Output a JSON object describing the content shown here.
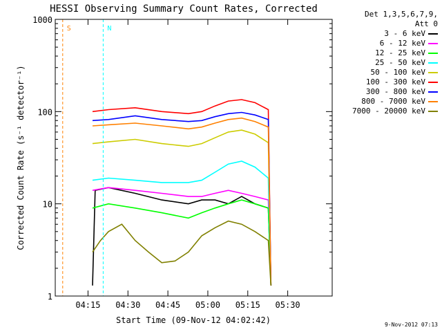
{
  "chart_data": {
    "type": "line",
    "title": "HESSI Observing Summary Count Rates, Corrected",
    "xlabel": "Start Time (09-Nov-12 04:02:42)",
    "ylabel": "Corrected Count Rate (s⁻¹ detector⁻¹)",
    "yscale": "log",
    "ylim": [
      1,
      1000
    ],
    "xlim_minutes_after_start": [
      0,
      104
    ],
    "x_tick_labels": [
      "04:15",
      "04:30",
      "04:45",
      "05:00",
      "05:15",
      "05:30"
    ],
    "x_tick_minutes_after_start": [
      12.3,
      27.3,
      42.3,
      57.3,
      72.3,
      87.3
    ],
    "y_tick_labels": [
      "1",
      "10",
      "100",
      "1000"
    ],
    "y_tick_values": [
      1,
      10,
      100,
      1000
    ],
    "legend_header": [
      "Det 1,3,5,6,7,9,",
      "Att 0"
    ],
    "legend_position": "right",
    "series": [
      {
        "name": "3 - 6 keV",
        "color": "#000000",
        "points": [
          [
            14,
            1.3
          ],
          [
            15,
            14
          ],
          [
            20,
            15
          ],
          [
            30,
            13
          ],
          [
            40,
            11
          ],
          [
            50,
            10
          ],
          [
            55,
            11
          ],
          [
            60,
            11
          ],
          [
            65,
            10
          ],
          [
            70,
            12
          ],
          [
            75,
            10
          ],
          [
            80,
            9
          ],
          [
            81,
            1.3
          ]
        ]
      },
      {
        "name": "6 - 12 keV",
        "color": "#ff00ff",
        "points": [
          [
            14,
            14
          ],
          [
            20,
            15
          ],
          [
            30,
            14
          ],
          [
            40,
            13
          ],
          [
            50,
            12
          ],
          [
            55,
            12
          ],
          [
            60,
            13
          ],
          [
            65,
            14
          ],
          [
            70,
            13
          ],
          [
            75,
            12
          ],
          [
            80,
            11
          ],
          [
            81,
            1.3
          ]
        ]
      },
      {
        "name": "12 - 25 keV",
        "color": "#00ff00",
        "points": [
          [
            14,
            9
          ],
          [
            20,
            10
          ],
          [
            30,
            9
          ],
          [
            40,
            8
          ],
          [
            50,
            7
          ],
          [
            55,
            8
          ],
          [
            60,
            9
          ],
          [
            65,
            10
          ],
          [
            70,
            11
          ],
          [
            75,
            10
          ],
          [
            80,
            9
          ],
          [
            81,
            1.3
          ]
        ]
      },
      {
        "name": "25 - 50 keV",
        "color": "#00ffff",
        "points": [
          [
            14,
            18
          ],
          [
            20,
            19
          ],
          [
            30,
            18
          ],
          [
            40,
            17
          ],
          [
            50,
            17
          ],
          [
            55,
            18
          ],
          [
            60,
            22
          ],
          [
            65,
            27
          ],
          [
            70,
            29
          ],
          [
            75,
            25
          ],
          [
            80,
            19
          ],
          [
            81,
            1.3
          ]
        ]
      },
      {
        "name": "50 - 100 keV",
        "color": "#cccc00",
        "points": [
          [
            14,
            45
          ],
          [
            20,
            47
          ],
          [
            30,
            50
          ],
          [
            40,
            45
          ],
          [
            50,
            42
          ],
          [
            55,
            45
          ],
          [
            60,
            52
          ],
          [
            65,
            60
          ],
          [
            70,
            63
          ],
          [
            75,
            57
          ],
          [
            80,
            46
          ],
          [
            81,
            1.3
          ]
        ]
      },
      {
        "name": "100 - 300 keV",
        "color": "#ff0000",
        "points": [
          [
            14,
            100
          ],
          [
            20,
            105
          ],
          [
            30,
            110
          ],
          [
            40,
            100
          ],
          [
            50,
            95
          ],
          [
            55,
            100
          ],
          [
            60,
            115
          ],
          [
            65,
            130
          ],
          [
            70,
            135
          ],
          [
            75,
            125
          ],
          [
            80,
            105
          ],
          [
            81,
            1.3
          ]
        ]
      },
      {
        "name": "300 - 800 keV",
        "color": "#0000ff",
        "points": [
          [
            14,
            80
          ],
          [
            20,
            82
          ],
          [
            30,
            90
          ],
          [
            40,
            82
          ],
          [
            50,
            78
          ],
          [
            55,
            80
          ],
          [
            60,
            88
          ],
          [
            65,
            95
          ],
          [
            70,
            98
          ],
          [
            75,
            92
          ],
          [
            80,
            82
          ],
          [
            81,
            1.3
          ]
        ]
      },
      {
        "name": "800 - 7000 keV",
        "color": "#ff8000",
        "points": [
          [
            14,
            70
          ],
          [
            20,
            72
          ],
          [
            30,
            75
          ],
          [
            40,
            70
          ],
          [
            50,
            65
          ],
          [
            55,
            68
          ],
          [
            60,
            75
          ],
          [
            65,
            82
          ],
          [
            70,
            85
          ],
          [
            75,
            78
          ],
          [
            80,
            68
          ],
          [
            81,
            1.3
          ]
        ]
      },
      {
        "name": "7000 - 20000 keV",
        "color": "#808000",
        "points": [
          [
            14,
            3
          ],
          [
            17,
            4
          ],
          [
            20,
            5
          ],
          [
            25,
            6
          ],
          [
            30,
            4
          ],
          [
            35,
            3
          ],
          [
            40,
            2.3
          ],
          [
            45,
            2.4
          ],
          [
            50,
            3
          ],
          [
            55,
            4.5
          ],
          [
            60,
            5.5
          ],
          [
            65,
            6.5
          ],
          [
            70,
            6
          ],
          [
            75,
            5
          ],
          [
            80,
            4
          ],
          [
            81,
            1.3
          ]
        ]
      }
    ],
    "annotations": [
      {
        "label": "S",
        "minute": 2.8,
        "color": "#ff8000"
      },
      {
        "label": "N",
        "minute": 18,
        "color": "#00ffff"
      }
    ],
    "timestamp": "9-Nov-2012 07:13"
  }
}
